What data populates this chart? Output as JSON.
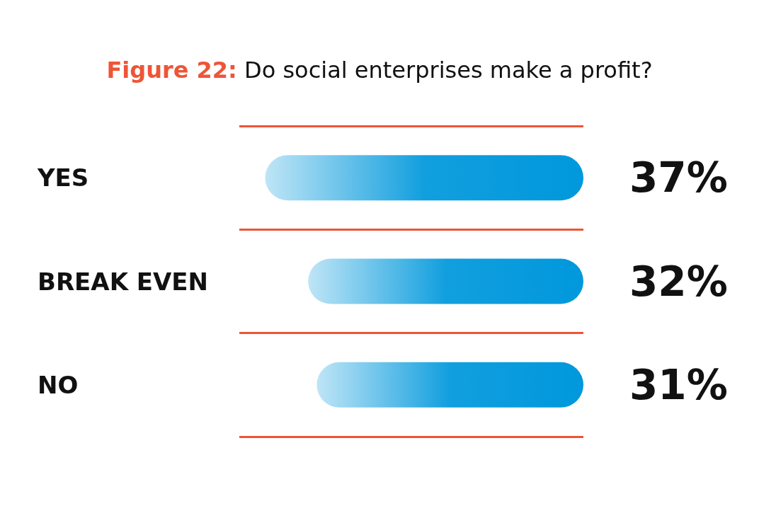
{
  "chart_data": {
    "type": "bar",
    "orientation": "horizontal",
    "title": "Figure 22: Do social enterprises make a profit?",
    "categories": [
      "YES",
      "BREAK EVEN",
      "NO"
    ],
    "values": [
      37,
      32,
      31
    ],
    "value_labels": [
      "37%",
      "32%",
      "31%"
    ],
    "color": "#0098dc",
    "grid": "y",
    "tick_labels": "y"
  }
}
